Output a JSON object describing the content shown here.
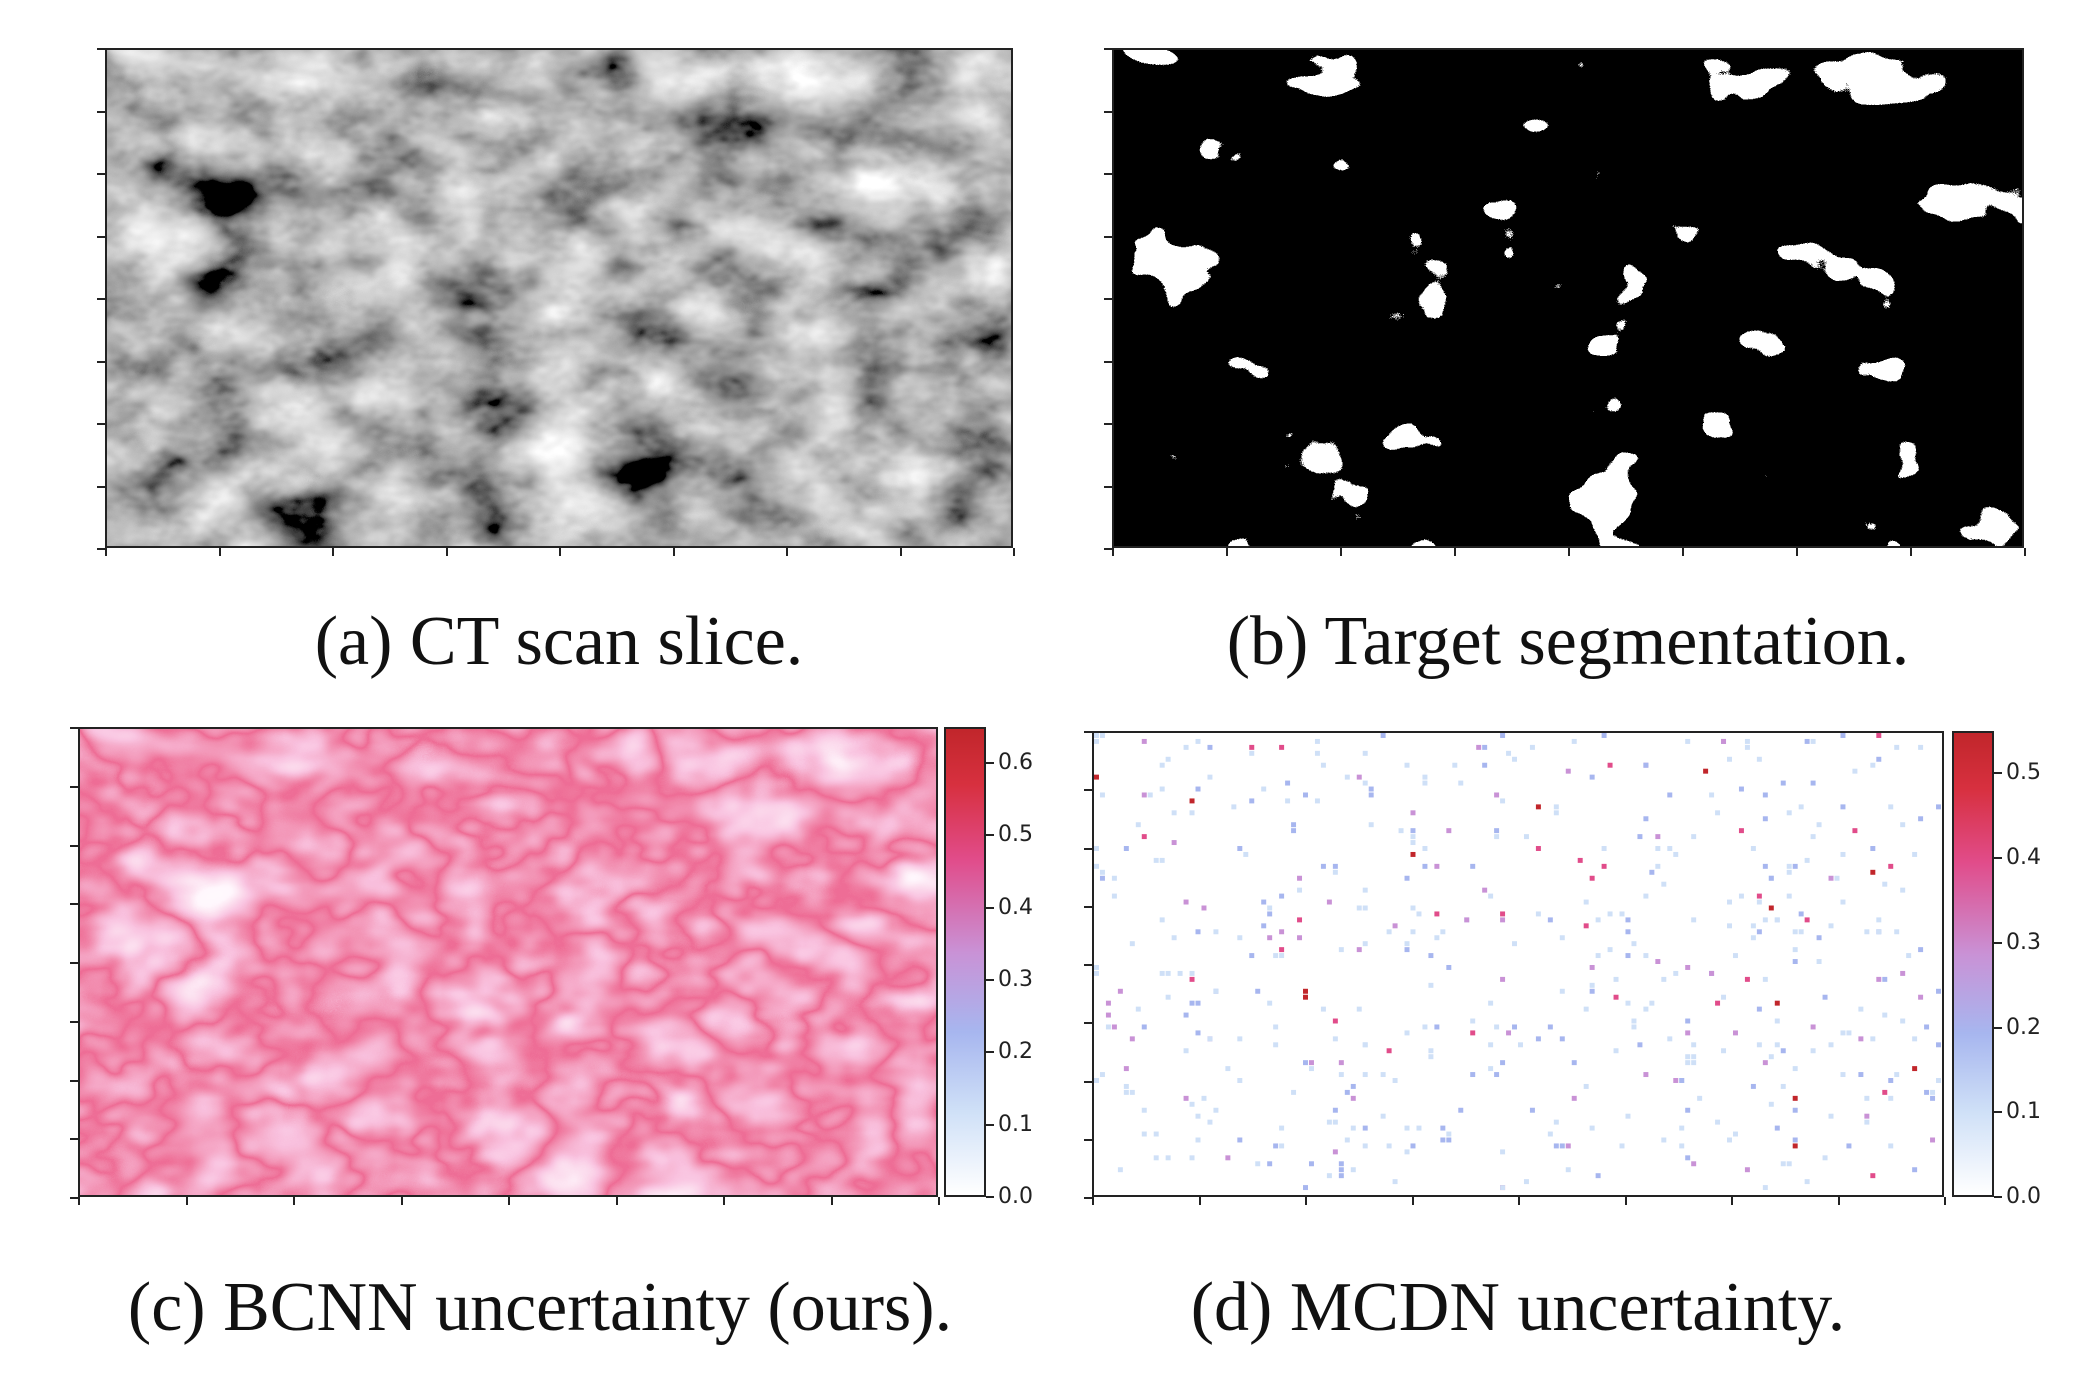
{
  "figure": {
    "panels": [
      {
        "id": "a",
        "caption": "(a) CT scan slice.",
        "kind": "ct-scan-grayscale"
      },
      {
        "id": "b",
        "caption": "(b) Target segmentation.",
        "kind": "binary-segmentation"
      },
      {
        "id": "c",
        "caption": "(c) BCNN uncertainty (ours).",
        "kind": "uncertainty-heatmap"
      },
      {
        "id": "d",
        "caption": "(d) MCDN uncertainty.",
        "kind": "uncertainty-heatmap"
      }
    ]
  },
  "chart_data": [
    {
      "type": "heatmap",
      "title": "(c) BCNN uncertainty (ours).",
      "colorbar": {
        "ticks": [
          "0.0",
          "0.1",
          "0.2",
          "0.3",
          "0.4",
          "0.5",
          "0.6"
        ],
        "range": [
          0.0,
          0.65
        ]
      },
      "colormap": [
        "#ffffff",
        "#cfe0f7",
        "#a7b6ef",
        "#c992d6",
        "#e14c8a",
        "#c1262b"
      ]
    },
    {
      "type": "heatmap",
      "title": "(d) MCDN uncertainty.",
      "colorbar": {
        "ticks": [
          "0.0",
          "0.1",
          "0.2",
          "0.3",
          "0.4",
          "0.5"
        ],
        "range": [
          0.0,
          0.55
        ]
      },
      "colormap": [
        "#ffffff",
        "#cfe0f7",
        "#a7b6ef",
        "#c992d6",
        "#e14c8a",
        "#c1262b"
      ]
    }
  ]
}
